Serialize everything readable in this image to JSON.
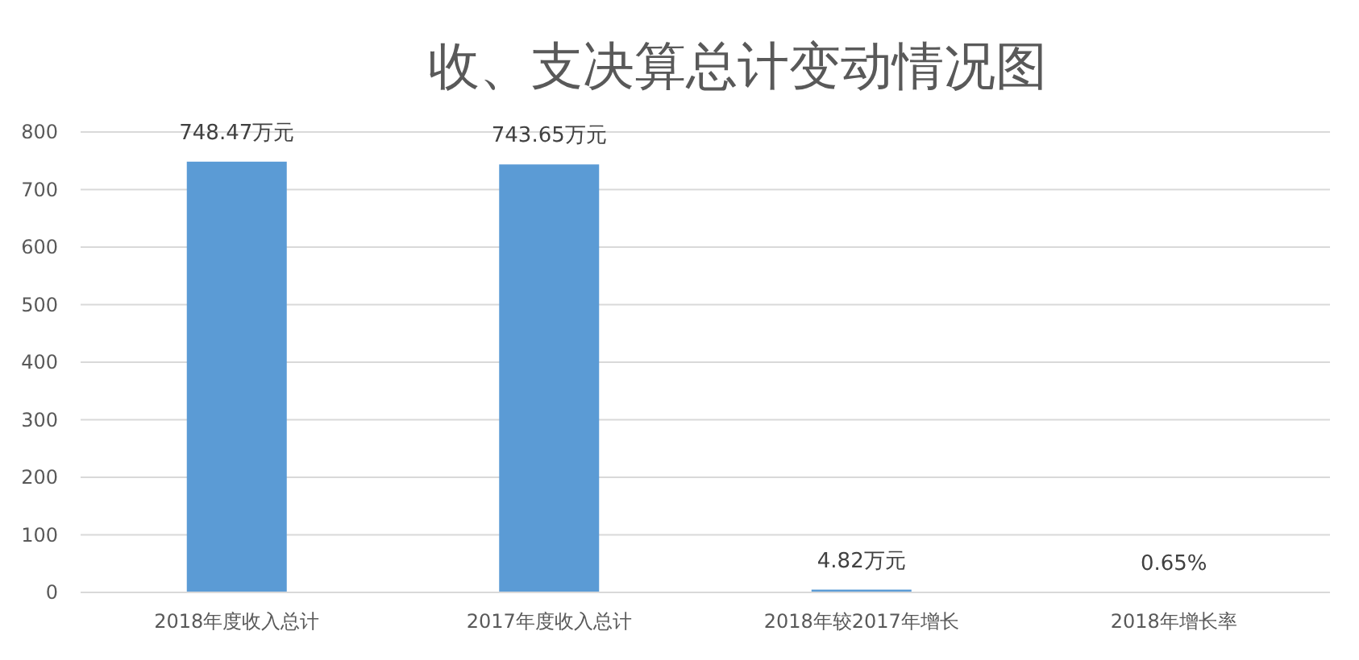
{
  "chart_data": {
    "type": "bar",
    "title": "收、支决算总计变动情况图",
    "categories": [
      "2018年度收入总计",
      "2017年度收入总计",
      "2018年较2017年增长",
      "2018年增长率"
    ],
    "values": [
      748.47,
      743.65,
      4.82,
      0.65
    ],
    "value_labels": [
      "748.47万元",
      "743.65万元",
      "4.82万元",
      "0.65%"
    ],
    "color": "#5b9bd5",
    "ylim": [
      0,
      800
    ],
    "yticks": [
      0,
      100,
      200,
      300,
      400,
      500,
      600,
      700,
      800
    ],
    "grid": "y"
  }
}
